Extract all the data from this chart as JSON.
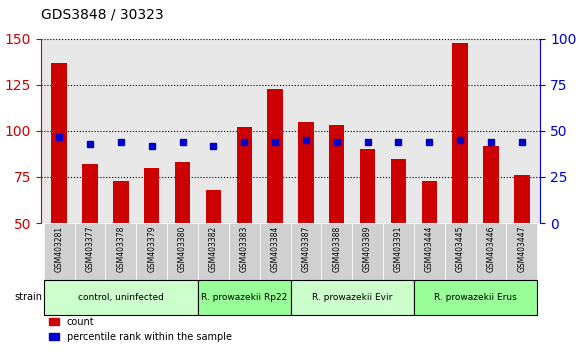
{
  "title": "GDS3848 / 30323",
  "samples": [
    "GSM403281",
    "GSM403377",
    "GSM403378",
    "GSM403379",
    "GSM403380",
    "GSM403382",
    "GSM403383",
    "GSM403384",
    "GSM403387",
    "GSM403388",
    "GSM403389",
    "GSM403391",
    "GSM403444",
    "GSM403445",
    "GSM403446",
    "GSM403447"
  ],
  "count": [
    137,
    82,
    73,
    80,
    83,
    68,
    102,
    123,
    105,
    103,
    90,
    85,
    73,
    148,
    92,
    76
  ],
  "percentile": [
    47,
    43,
    44,
    42,
    44,
    42,
    44,
    44,
    45,
    44,
    44,
    44,
    44,
    45,
    44,
    44
  ],
  "groups": [
    {
      "label": "control, uninfected",
      "start": 0,
      "end": 5,
      "color": "#ccffcc"
    },
    {
      "label": "R. prowazekii Rp22",
      "start": 5,
      "end": 8,
      "color": "#99ff99"
    },
    {
      "label": "R. prowazekii Evir",
      "start": 8,
      "end": 12,
      "color": "#ccffcc"
    },
    {
      "label": "R. prowazekii Erus",
      "start": 12,
      "end": 16,
      "color": "#99ff99"
    }
  ],
  "ylim_left": [
    50,
    150
  ],
  "ylim_right": [
    0,
    100
  ],
  "yticks_left": [
    50,
    75,
    100,
    125,
    150
  ],
  "yticks_right": [
    0,
    25,
    50,
    75,
    100
  ],
  "bar_color": "#cc0000",
  "dot_color": "#0000cc",
  "bar_width": 0.5,
  "bg_plot": "#e8e8e8",
  "bg_label": "#d0d0d0",
  "grid_color": "#000000",
  "left_label_color": "#cc0000",
  "right_label_color": "#0000cc"
}
